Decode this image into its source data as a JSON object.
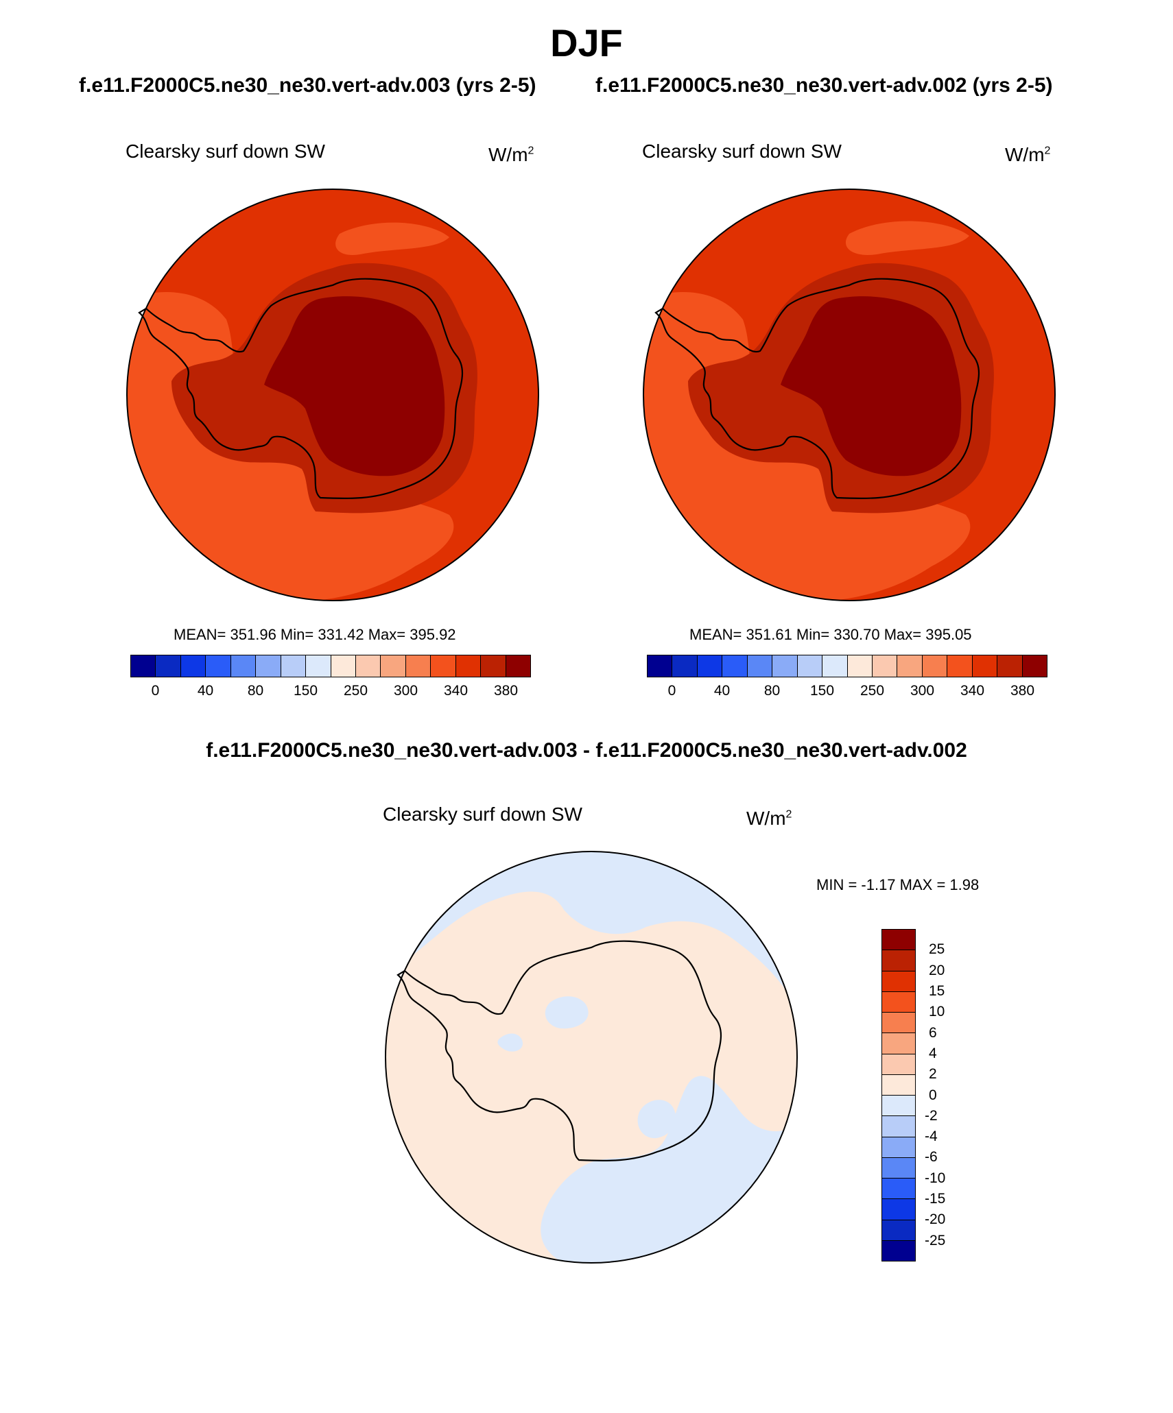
{
  "page": {
    "title": "DJF",
    "case_a_title": "f.e11.F2000C5.ne30_ne30.vert-adv.003 (yrs 2-5)",
    "case_b_title": "f.e11.F2000C5.ne30_ne30.vert-adv.002 (yrs 2-5)",
    "diff_title": "f.e11.F2000C5.ne30_ne30.vert-adv.003 - f.e11.F2000C5.ne30_ne30.vert-adv.002"
  },
  "panels": [
    {
      "variable": "Clearsky surf down SW",
      "unit": "W/m",
      "unit_sup": "2",
      "stats": "MEAN= 351.96  Min= 331.42  Max= 395.92"
    },
    {
      "variable": "Clearsky surf down SW",
      "unit": "W/m",
      "unit_sup": "2",
      "stats": "MEAN= 351.61  Min= 330.70  Max= 395.05"
    }
  ],
  "diff_panel": {
    "variable": "Clearsky surf down SW",
    "unit": "W/m",
    "unit_sup": "2",
    "stats": "MIN =  -1.17 MAX =   1.98"
  },
  "colorbar_abs": {
    "colors": [
      "#000090",
      "#0a2ac2",
      "#0d38e6",
      "#2a5cf8",
      "#5a87f6",
      "#8aabf7",
      "#b8cdf8",
      "#dce9fb",
      "#fde9da",
      "#fbc9b0",
      "#f8a67f",
      "#f77f4f",
      "#f3521d",
      "#e03102",
      "#bb2203",
      "#8e0000"
    ],
    "tick_labels": [
      "0",
      "40",
      "80",
      "150",
      "250",
      "300",
      "340",
      "380"
    ]
  },
  "colorbar_diff": {
    "colors": [
      "#8e0000",
      "#bb2203",
      "#e03102",
      "#f3521d",
      "#f77f4f",
      "#f8a67f",
      "#fbc9b0",
      "#fde9da",
      "#dce9fb",
      "#b8cdf8",
      "#8aabf7",
      "#5a87f6",
      "#2a5cf8",
      "#0d38e6",
      "#0a2ac2",
      "#000090"
    ],
    "tick_labels": [
      "25",
      "20",
      "15",
      "10",
      "6",
      "4",
      "2",
      "0",
      "-2",
      "-4",
      "-6",
      "-10",
      "-15",
      "-20",
      "-25"
    ]
  },
  "map_colors": {
    "ocean_outer": "#f3521d",
    "ocean_mid": "#e03102",
    "coast_band": "#bb2203",
    "plateau": "#8e0000",
    "diff_pos": "#fde9da",
    "diff_neg": "#dce9fb"
  },
  "map_icons": [
    "antarctica-coastline-icon"
  ]
}
